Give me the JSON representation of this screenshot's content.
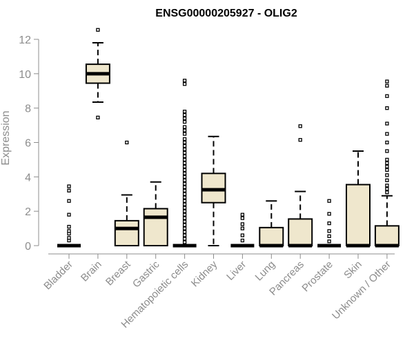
{
  "chart_data": {
    "type": "boxplot",
    "title": "ENSG00000205927 - OLIG2",
    "ylabel": "Expression",
    "xlabel": "",
    "ylim": [
      0,
      12.5
    ],
    "yticks": [
      0,
      2,
      4,
      6,
      8,
      10,
      12
    ],
    "colors": {
      "box_fill": "#efe7cd",
      "stroke": "#000000",
      "axis": "#8c8c8c"
    },
    "categories": [
      "Bladder",
      "Brain",
      "Breast",
      "Gastric",
      "Hematopoietic cells",
      "Kidney",
      "Liver",
      "Lung",
      "Pancreas",
      "Prostate",
      "Skin",
      "Unknown / Other"
    ],
    "boxes": [
      {
        "name": "Bladder",
        "min": 0,
        "q1": 0,
        "median": 0,
        "q3": 0,
        "max": 0,
        "outliers": [
          0.3,
          0.45,
          0.7,
          0.85,
          1.1,
          1.8,
          2.6,
          3.2,
          3.45
        ]
      },
      {
        "name": "Brain",
        "min": 8.35,
        "q1": 9.45,
        "median": 10.0,
        "q3": 10.55,
        "max": 11.8,
        "outliers": [
          7.45,
          12.55
        ]
      },
      {
        "name": "Breast",
        "min": 0,
        "q1": 0,
        "median": 1.0,
        "q3": 1.45,
        "max": 2.95,
        "outliers": [
          6.0
        ]
      },
      {
        "name": "Gastric",
        "min": 0,
        "q1": 0,
        "median": 1.65,
        "q3": 2.15,
        "max": 3.7,
        "outliers": []
      },
      {
        "name": "Hematopoietic cells",
        "min": 0,
        "q1": 0,
        "median": 0,
        "q3": 0,
        "max": 0,
        "outliers": [
          0.2,
          0.4,
          0.6,
          0.8,
          1.0,
          1.2,
          1.4,
          1.6,
          1.8,
          2.0,
          2.2,
          2.4,
          2.6,
          2.8,
          3.0,
          3.2,
          3.4,
          3.6,
          3.8,
          4.0,
          4.2,
          4.4,
          4.6,
          4.8,
          5.0,
          5.2,
          5.4,
          5.6,
          5.8,
          6.0,
          6.2,
          6.5,
          6.7,
          6.9,
          7.2,
          7.4,
          7.6,
          7.8,
          9.4,
          9.6
        ]
      },
      {
        "name": "Kidney",
        "min": 0,
        "q1": 2.5,
        "median": 3.25,
        "q3": 4.2,
        "max": 6.35,
        "outliers": []
      },
      {
        "name": "Liver",
        "min": 0,
        "q1": 0,
        "median": 0,
        "q3": 0,
        "max": 0,
        "outliers": [
          0.3,
          0.6,
          1.0,
          1.25,
          1.6,
          1.8
        ]
      },
      {
        "name": "Lung",
        "min": 0,
        "q1": 0,
        "median": 0,
        "q3": 1.05,
        "max": 2.6,
        "outliers": []
      },
      {
        "name": "Pancreas",
        "min": 0,
        "q1": 0,
        "median": 0,
        "q3": 1.55,
        "max": 3.15,
        "outliers": [
          6.15,
          6.95
        ]
      },
      {
        "name": "Prostate",
        "min": 0,
        "q1": 0,
        "median": 0,
        "q3": 0,
        "max": 0,
        "outliers": [
          0.25,
          0.55,
          0.85,
          1.3,
          1.85,
          2.6
        ]
      },
      {
        "name": "Skin",
        "min": 0,
        "q1": 0,
        "median": 0,
        "q3": 3.55,
        "max": 5.5,
        "outliers": []
      },
      {
        "name": "Unknown / Other",
        "min": 0,
        "q1": 0,
        "median": 0,
        "q3": 1.15,
        "max": 2.9,
        "outliers": [
          3.1,
          3.3,
          3.5,
          3.8,
          4.1,
          4.4,
          4.6,
          4.8,
          5.0,
          5.5,
          6.0,
          6.5,
          7.1,
          8.0,
          8.7,
          9.3,
          9.55
        ]
      }
    ]
  }
}
